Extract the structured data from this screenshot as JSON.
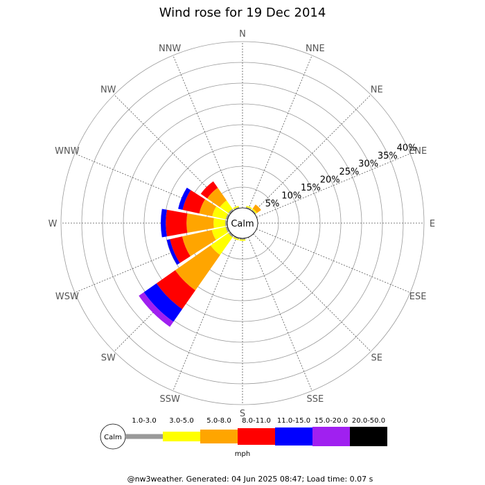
{
  "chart_data": {
    "type": "wind-rose",
    "title": "Wind rose for 19 Dec 2014",
    "directions": [
      "N",
      "NNE",
      "NE",
      "ENE",
      "E",
      "ESE",
      "SE",
      "SSE",
      "S",
      "SSW",
      "SW",
      "WSW",
      "W",
      "WNW",
      "NW",
      "NNW"
    ],
    "ring_labels": [
      "5%",
      "10%",
      "15%",
      "20%",
      "25%",
      "30%",
      "35%",
      "40%"
    ],
    "ring_max_percent": 40,
    "center_label": "Calm",
    "unit": "mph",
    "speed_bins": [
      {
        "label": "1.0-3.0",
        "color": "#999999"
      },
      {
        "label": "3.0-5.0",
        "color": "#ffff00"
      },
      {
        "label": "5.0-8.0",
        "color": "#ffa500"
      },
      {
        "label": "8.0-11.0",
        "color": "#ff0000"
      },
      {
        "label": "11.0-15.0",
        "color": "#0000ff"
      },
      {
        "label": "15.0-20.0",
        "color": "#a020f0"
      },
      {
        "label": "20.0-50.0",
        "color": "#000000"
      }
    ],
    "series": [
      {
        "direction": "NE",
        "values": [
          0.3,
          0.3,
          1.2,
          0,
          0,
          0,
          0
        ]
      },
      {
        "direction": "NNE",
        "values": [
          0.3,
          0.3,
          0,
          0,
          0,
          0,
          0
        ]
      },
      {
        "direction": "SSW",
        "values": [
          0.3,
          0.3,
          0,
          0,
          0,
          0,
          0
        ]
      },
      {
        "direction": "S",
        "values": [
          0.3,
          0.3,
          0,
          0,
          0,
          0,
          0
        ]
      },
      {
        "direction": "SW",
        "values": [
          0.5,
          5.2,
          10.4,
          5.5,
          3.7,
          1.5,
          0
        ]
      },
      {
        "direction": "WSW",
        "values": [
          0.5,
          3.4,
          7.3,
          3.0,
          0.8,
          0,
          0
        ]
      },
      {
        "direction": "W",
        "values": [
          0.5,
          2.8,
          6.5,
          5.0,
          1.2,
          0,
          0
        ]
      },
      {
        "direction": "WNW",
        "values": [
          0.5,
          3.3,
          3.2,
          4.1,
          1.1,
          0,
          0
        ]
      },
      {
        "direction": "NW",
        "values": [
          0.5,
          2.5,
          3.7,
          1.9,
          0,
          0,
          0
        ]
      },
      {
        "direction": "NNW",
        "values": [
          0.3,
          0.3,
          0,
          0,
          0,
          0,
          0
        ]
      }
    ],
    "grid": true
  },
  "footer": "@nw3weather. Generated: 04 Jun 2025 08:47; Load time: 0.07 s"
}
